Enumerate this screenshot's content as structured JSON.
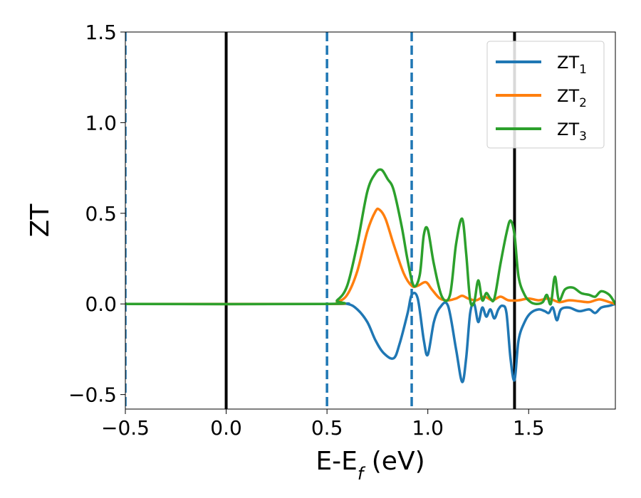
{
  "chart_data": {
    "type": "line",
    "xlabel_main": "E-E",
    "xlabel_sub": "f",
    "xlabel_unit": " (eV)",
    "ylabel": "ZT",
    "xlim": [
      -0.5,
      1.93
    ],
    "ylim": [
      -0.58,
      1.5
    ],
    "x_ticks": [
      -0.5,
      0.0,
      0.5,
      1.0,
      1.5
    ],
    "x_tick_labels": [
      "−0.5",
      "0.0",
      "0.5",
      "1.0",
      "1.5"
    ],
    "y_ticks": [
      -0.5,
      0.0,
      0.5,
      1.0,
      1.5
    ],
    "y_tick_labels": [
      "−0.5",
      "0.0",
      "0.5",
      "1.0",
      "1.5"
    ],
    "grid": false,
    "legend_position": "top-right",
    "vertical_lines": [
      {
        "x": -0.5,
        "style": "dashed",
        "color": "#1f77b4"
      },
      {
        "x": 0.0,
        "style": "solid",
        "color": "#000000"
      },
      {
        "x": 0.5,
        "style": "dashed",
        "color": "#1f77b4"
      },
      {
        "x": 0.92,
        "style": "dashed",
        "color": "#1f77b4"
      },
      {
        "x": 1.43,
        "style": "solid",
        "color": "#000000"
      }
    ],
    "series": [
      {
        "name_main": "ZT",
        "name_sub": "1",
        "color": "#1f77b4",
        "x": [
          -0.5,
          0.5,
          0.6,
          0.65,
          0.7,
          0.74,
          0.78,
          0.83,
          0.86,
          0.9,
          0.92,
          0.95,
          0.98,
          1.0,
          1.03,
          1.06,
          1.1,
          1.14,
          1.17,
          1.19,
          1.21,
          1.23,
          1.25,
          1.27,
          1.29,
          1.31,
          1.33,
          1.35,
          1.37,
          1.39,
          1.41,
          1.43,
          1.45,
          1.48,
          1.51,
          1.55,
          1.58,
          1.6,
          1.62,
          1.64,
          1.66,
          1.7,
          1.75,
          1.8,
          1.83,
          1.86,
          1.9,
          1.93
        ],
        "y": [
          0.0,
          0.0,
          0.0,
          -0.03,
          -0.1,
          -0.2,
          -0.27,
          -0.3,
          -0.22,
          -0.05,
          0.05,
          0.03,
          -0.2,
          -0.28,
          -0.1,
          -0.02,
          -0.01,
          -0.25,
          -0.43,
          -0.3,
          -0.05,
          0.0,
          -0.1,
          -0.02,
          -0.07,
          -0.03,
          -0.08,
          -0.03,
          -0.01,
          -0.05,
          -0.3,
          -0.42,
          -0.2,
          -0.1,
          -0.05,
          -0.03,
          -0.04,
          -0.05,
          -0.02,
          -0.09,
          -0.03,
          -0.02,
          -0.04,
          -0.03,
          -0.05,
          -0.02,
          -0.01,
          0.0
        ]
      },
      {
        "name_main": "ZT",
        "name_sub": "2",
        "color": "#ff7f0e",
        "x": [
          -0.5,
          0.5,
          0.55,
          0.6,
          0.65,
          0.7,
          0.74,
          0.76,
          0.79,
          0.83,
          0.88,
          0.92,
          0.95,
          0.99,
          1.02,
          1.06,
          1.1,
          1.14,
          1.17,
          1.2,
          1.24,
          1.28,
          1.32,
          1.36,
          1.4,
          1.45,
          1.5,
          1.55,
          1.6,
          1.65,
          1.7,
          1.75,
          1.8,
          1.85,
          1.9,
          1.93
        ],
        "y": [
          0.0,
          0.0,
          0.01,
          0.05,
          0.18,
          0.4,
          0.51,
          0.52,
          0.47,
          0.33,
          0.17,
          0.1,
          0.1,
          0.12,
          0.08,
          0.03,
          0.02,
          0.03,
          0.045,
          0.03,
          0.02,
          0.04,
          0.02,
          0.04,
          0.02,
          0.02,
          0.03,
          0.02,
          0.03,
          0.01,
          0.02,
          0.015,
          0.01,
          0.025,
          0.01,
          0.0
        ]
      },
      {
        "name_main": "ZT",
        "name_sub": "3",
        "color": "#2ca02c",
        "x": [
          -0.5,
          0.5,
          0.55,
          0.6,
          0.65,
          0.7,
          0.74,
          0.77,
          0.8,
          0.83,
          0.87,
          0.9,
          0.93,
          0.96,
          0.98,
          1.0,
          1.03,
          1.07,
          1.11,
          1.14,
          1.17,
          1.19,
          1.21,
          1.23,
          1.25,
          1.27,
          1.29,
          1.31,
          1.33,
          1.36,
          1.39,
          1.41,
          1.43,
          1.45,
          1.48,
          1.51,
          1.54,
          1.57,
          1.59,
          1.61,
          1.63,
          1.65,
          1.68,
          1.72,
          1.76,
          1.8,
          1.83,
          1.86,
          1.9,
          1.93
        ],
        "y": [
          0.0,
          0.0,
          0.02,
          0.1,
          0.33,
          0.62,
          0.72,
          0.74,
          0.69,
          0.63,
          0.43,
          0.24,
          0.1,
          0.16,
          0.38,
          0.41,
          0.22,
          0.04,
          0.05,
          0.33,
          0.47,
          0.28,
          0.02,
          0.01,
          0.13,
          0.02,
          0.06,
          0.03,
          0.03,
          0.22,
          0.39,
          0.46,
          0.38,
          0.15,
          0.05,
          0.01,
          0.0,
          0.01,
          0.05,
          0.0,
          0.15,
          0.02,
          0.08,
          0.09,
          0.06,
          0.05,
          0.04,
          0.07,
          0.05,
          0.0
        ]
      }
    ]
  }
}
